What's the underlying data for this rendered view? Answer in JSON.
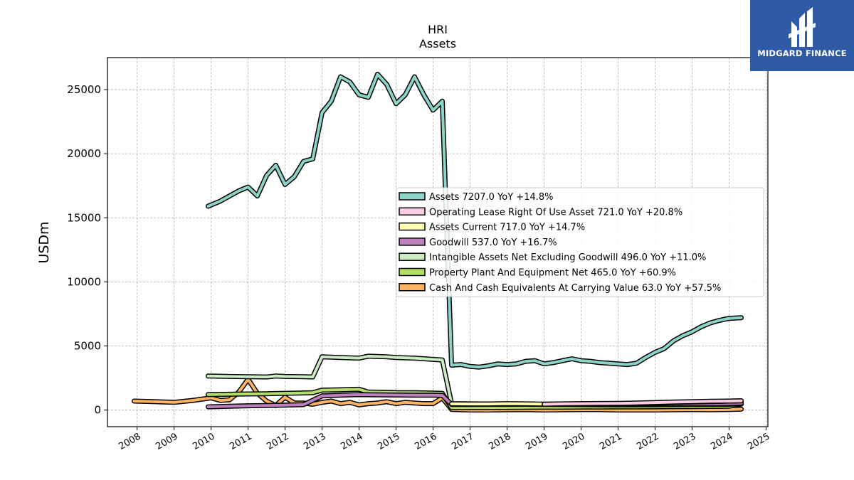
{
  "brand": {
    "name": "MIDGARD FINANCE",
    "logo_icon": "midgard-logo-icon",
    "background": "#2f5aa6"
  },
  "chart_data": {
    "type": "line",
    "title": "HRI",
    "subtitle": "Assets",
    "xlabel": "",
    "ylabel": "USDm",
    "xlim": [
      2007.2,
      2025.05
    ],
    "ylim": [
      -1300,
      27500
    ],
    "x_ticks": [
      2008,
      2009,
      2010,
      2011,
      2012,
      2013,
      2014,
      2015,
      2016,
      2017,
      2018,
      2019,
      2020,
      2021,
      2022,
      2023,
      2024,
      2025
    ],
    "y_ticks": [
      0,
      5000,
      10000,
      15000,
      20000,
      25000
    ],
    "grid": true,
    "legend_position": "center-right",
    "series": [
      {
        "name": "Assets",
        "legend_label": "Assets  7207.0 YoY +14.8%",
        "color": "#8dd3c7",
        "x": [
          2009.92,
          2010.25,
          2010.5,
          2010.75,
          2011.0,
          2011.25,
          2011.5,
          2011.75,
          2012.0,
          2012.25,
          2012.5,
          2012.75,
          2013.0,
          2013.25,
          2013.5,
          2013.75,
          2014.0,
          2014.25,
          2014.5,
          2014.75,
          2015.0,
          2015.25,
          2015.5,
          2015.75,
          2016.0,
          2016.25,
          2016.5,
          2016.75,
          2017.0,
          2017.25,
          2017.5,
          2017.75,
          2018.0,
          2018.25,
          2018.5,
          2018.75,
          2019.0,
          2019.25,
          2019.5,
          2019.75,
          2020.0,
          2020.25,
          2020.5,
          2020.75,
          2021.0,
          2021.25,
          2021.5,
          2021.75,
          2022.0,
          2022.25,
          2022.5,
          2022.75,
          2023.0,
          2023.25,
          2023.5,
          2023.75,
          2024.0,
          2024.33
        ],
        "y": [
          15900,
          16300,
          16700,
          17100,
          17400,
          16700,
          18300,
          19100,
          17600,
          18200,
          19400,
          19600,
          23200,
          24100,
          26000,
          25600,
          24600,
          24400,
          26200,
          25400,
          23900,
          24600,
          26000,
          24600,
          23400,
          24100,
          3500,
          3550,
          3400,
          3350,
          3450,
          3600,
          3550,
          3600,
          3800,
          3850,
          3600,
          3700,
          3850,
          4000,
          3850,
          3800,
          3700,
          3650,
          3600,
          3550,
          3650,
          4100,
          4500,
          4800,
          5400,
          5800,
          6100,
          6500,
          6800,
          7000,
          7150,
          7207
        ]
      },
      {
        "name": "Operating Lease Right Of Use Asset",
        "legend_label": "Operating Lease Right Of Use Asset  721.0 YoY +20.8%",
        "color": "#fccde5",
        "x": [
          2019.0,
          2019.5,
          2020.0,
          2020.5,
          2021.0,
          2021.5,
          2022.0,
          2022.5,
          2023.0,
          2023.5,
          2024.0,
          2024.33
        ],
        "y": [
          450,
          480,
          500,
          510,
          520,
          540,
          580,
          620,
          650,
          680,
          700,
          721
        ]
      },
      {
        "name": "Assets Current",
        "legend_label": "Assets Current  717.0 YoY +14.7%",
        "color": "#ffffb3",
        "x": [
          2016.5,
          2017.0,
          2017.5,
          2018.0,
          2018.5,
          2019.0,
          2019.5,
          2020.0,
          2020.5,
          2021.0,
          2021.5,
          2022.0,
          2022.5,
          2023.0,
          2023.5,
          2024.0,
          2024.33
        ],
        "y": [
          480,
          470,
          470,
          500,
          480,
          460,
          470,
          490,
          480,
          460,
          470,
          520,
          580,
          630,
          660,
          700,
          717
        ]
      },
      {
        "name": "Goodwill",
        "legend_label": "Goodwill  537.0 YoY +16.7%",
        "color": "#bc80bd",
        "x": [
          2009.92,
          2010.5,
          2011.0,
          2011.5,
          2012.0,
          2012.5,
          2013.0,
          2013.5,
          2014.0,
          2014.5,
          2015.0,
          2015.5,
          2016.0,
          2016.25,
          2016.5,
          2017.0,
          2017.5,
          2018.0,
          2018.5,
          2019.0,
          2019.5,
          2020.0,
          2020.5,
          2021.0,
          2021.5,
          2022.0,
          2022.5,
          2023.0,
          2023.5,
          2024.0,
          2024.33
        ],
        "y": [
          250,
          300,
          330,
          350,
          380,
          420,
          1100,
          1150,
          1200,
          1180,
          1170,
          1160,
          1150,
          1140,
          430,
          430,
          440,
          440,
          450,
          440,
          440,
          450,
          450,
          450,
          450,
          460,
          470,
          480,
          490,
          510,
          537
        ]
      },
      {
        "name": "Intangible Assets Net Excluding Goodwill",
        "legend_label": "Intangible Assets Net Excluding Goodwill  496.0 YoY +11.0%",
        "color": "#ccebc5",
        "x": [
          2009.92,
          2010.5,
          2011.0,
          2011.5,
          2011.75,
          2012.0,
          2012.5,
          2012.75,
          2013.0,
          2013.5,
          2014.0,
          2014.25,
          2014.75,
          2015.0,
          2015.5,
          2016.0,
          2016.25,
          2016.5,
          2017.0,
          2017.5,
          2018.0,
          2018.5,
          2019.0,
          2019.5,
          2020.0,
          2020.5,
          2021.0,
          2021.5,
          2022.0,
          2022.5,
          2023.0,
          2023.5,
          2024.0,
          2024.33
        ],
        "y": [
          2650,
          2620,
          2600,
          2580,
          2650,
          2620,
          2600,
          2580,
          4150,
          4100,
          4050,
          4200,
          4150,
          4100,
          4050,
          3950,
          3900,
          500,
          480,
          470,
          460,
          450,
          440,
          430,
          420,
          410,
          400,
          400,
          410,
          420,
          430,
          440,
          450,
          496
        ]
      },
      {
        "name": "Property Plant And Equipment Net",
        "legend_label": "Property Plant And Equipment Net  465.0 YoY +60.9%",
        "color": "#b3de69",
        "x": [
          2009.92,
          2010.5,
          2011.0,
          2011.5,
          2012.0,
          2012.5,
          2012.75,
          2013.0,
          2013.5,
          2014.0,
          2014.25,
          2014.75,
          2015.0,
          2015.5,
          2016.0,
          2016.25,
          2016.5,
          2017.0,
          2017.5,
          2018.0,
          2018.5,
          2019.0,
          2019.5,
          2020.0,
          2020.5,
          2021.0,
          2021.5,
          2022.0,
          2022.5,
          2023.0,
          2023.5,
          2024.0,
          2024.33
        ],
        "y": [
          1200,
          1230,
          1250,
          1270,
          1300,
          1330,
          1350,
          1550,
          1580,
          1620,
          1400,
          1380,
          1360,
          1350,
          1320,
          1300,
          180,
          190,
          200,
          200,
          210,
          220,
          220,
          230,
          230,
          240,
          240,
          250,
          260,
          270,
          280,
          290,
          465
        ]
      },
      {
        "name": "Cash And Cash Equivalents At Carrying Value",
        "legend_label": "Cash And Cash Equivalents At Carrying Value  63.0 YoY +57.5%",
        "color": "#fdb462",
        "x": [
          2007.92,
          2008.5,
          2009.0,
          2009.5,
          2010.0,
          2010.25,
          2010.5,
          2010.75,
          2011.0,
          2011.25,
          2011.5,
          2011.75,
          2012.0,
          2012.25,
          2012.5,
          2012.75,
          2013.0,
          2013.25,
          2013.5,
          2013.75,
          2014.0,
          2014.25,
          2014.5,
          2014.75,
          2015.0,
          2015.25,
          2015.5,
          2015.75,
          2016.0,
          2016.25,
          2016.5,
          2017.0,
          2017.5,
          2018.0,
          2018.5,
          2019.0,
          2019.5,
          2020.0,
          2020.5,
          2021.0,
          2021.5,
          2022.0,
          2022.5,
          2023.0,
          2023.5,
          2024.0,
          2024.33
        ],
        "y": [
          700,
          650,
          600,
          750,
          950,
          750,
          800,
          1400,
          2400,
          1300,
          700,
          350,
          1000,
          550,
          550,
          450,
          600,
          700,
          500,
          600,
          400,
          500,
          550,
          650,
          500,
          600,
          550,
          500,
          500,
          950,
          50,
          0,
          0,
          20,
          30,
          0,
          20,
          30,
          30,
          0,
          0,
          0,
          20,
          30,
          20,
          40,
          63
        ]
      }
    ]
  }
}
